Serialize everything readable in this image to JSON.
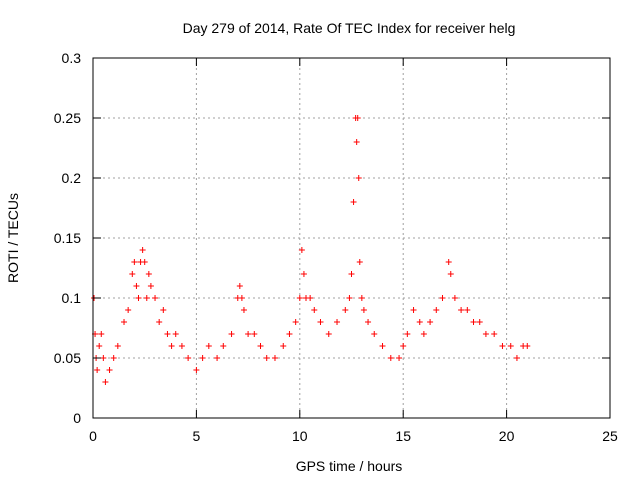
{
  "chart_data": {
    "type": "scatter",
    "title": "Day 279 of 2014, Rate Of TEC Index for receiver helg",
    "xlabel": "GPS time / hours",
    "ylabel": "ROTI / TECUs",
    "xlim": [
      0,
      25
    ],
    "ylim": [
      0,
      0.3
    ],
    "x_ticks": [
      0,
      5,
      10,
      15,
      20,
      25
    ],
    "x_tick_labels": [
      "0",
      "5",
      "10",
      "15",
      "20",
      "25"
    ],
    "y_ticks": [
      0,
      0.05,
      0.1,
      0.15,
      0.2,
      0.25,
      0.3
    ],
    "y_tick_labels": [
      "0",
      "0.05",
      "0.1",
      "0.15",
      "0.2",
      "0.25",
      "0.3"
    ],
    "grid": true,
    "marker": "+",
    "series": [
      {
        "name": "ROTI",
        "color": "#ff0000",
        "x": [
          0.05,
          0.1,
          0.15,
          0.2,
          0.3,
          0.4,
          0.5,
          0.6,
          0.8,
          1.0,
          1.2,
          1.5,
          1.7,
          1.9,
          2.0,
          2.1,
          2.2,
          2.3,
          2.4,
          2.5,
          2.6,
          2.7,
          2.8,
          3.0,
          3.2,
          3.4,
          3.6,
          3.8,
          4.0,
          4.3,
          4.6,
          5.0,
          5.3,
          5.6,
          6.0,
          6.3,
          6.7,
          7.0,
          7.1,
          7.2,
          7.3,
          7.5,
          7.8,
          8.1,
          8.4,
          8.8,
          9.2,
          9.5,
          9.8,
          10.0,
          10.1,
          10.2,
          10.3,
          10.5,
          10.7,
          11.0,
          11.4,
          11.8,
          12.2,
          12.4,
          12.5,
          12.6,
          12.7,
          12.75,
          12.8,
          12.85,
          12.9,
          13.0,
          13.1,
          13.3,
          13.6,
          14.0,
          14.4,
          14.8,
          15.0,
          15.2,
          15.5,
          15.8,
          16.0,
          16.3,
          16.6,
          16.9,
          17.2,
          17.3,
          17.5,
          17.8,
          18.1,
          18.4,
          18.7,
          19.0,
          19.4,
          19.8,
          20.2,
          20.5,
          20.8,
          21.0
        ],
        "y": [
          0.1,
          0.07,
          0.05,
          0.04,
          0.06,
          0.07,
          0.05,
          0.03,
          0.04,
          0.05,
          0.06,
          0.08,
          0.09,
          0.12,
          0.13,
          0.11,
          0.1,
          0.13,
          0.14,
          0.13,
          0.1,
          0.12,
          0.11,
          0.1,
          0.08,
          0.09,
          0.07,
          0.06,
          0.07,
          0.06,
          0.05,
          0.04,
          0.05,
          0.06,
          0.05,
          0.06,
          0.07,
          0.1,
          0.11,
          0.1,
          0.09,
          0.07,
          0.07,
          0.06,
          0.05,
          0.05,
          0.06,
          0.07,
          0.08,
          0.1,
          0.14,
          0.12,
          0.1,
          0.1,
          0.09,
          0.08,
          0.07,
          0.08,
          0.09,
          0.1,
          0.12,
          0.18,
          0.25,
          0.23,
          0.25,
          0.2,
          0.13,
          0.1,
          0.09,
          0.08,
          0.07,
          0.06,
          0.05,
          0.05,
          0.06,
          0.07,
          0.09,
          0.08,
          0.07,
          0.08,
          0.09,
          0.1,
          0.13,
          0.12,
          0.1,
          0.09,
          0.09,
          0.08,
          0.08,
          0.07,
          0.07,
          0.06,
          0.06,
          0.05,
          0.06,
          0.06
        ]
      }
    ]
  }
}
